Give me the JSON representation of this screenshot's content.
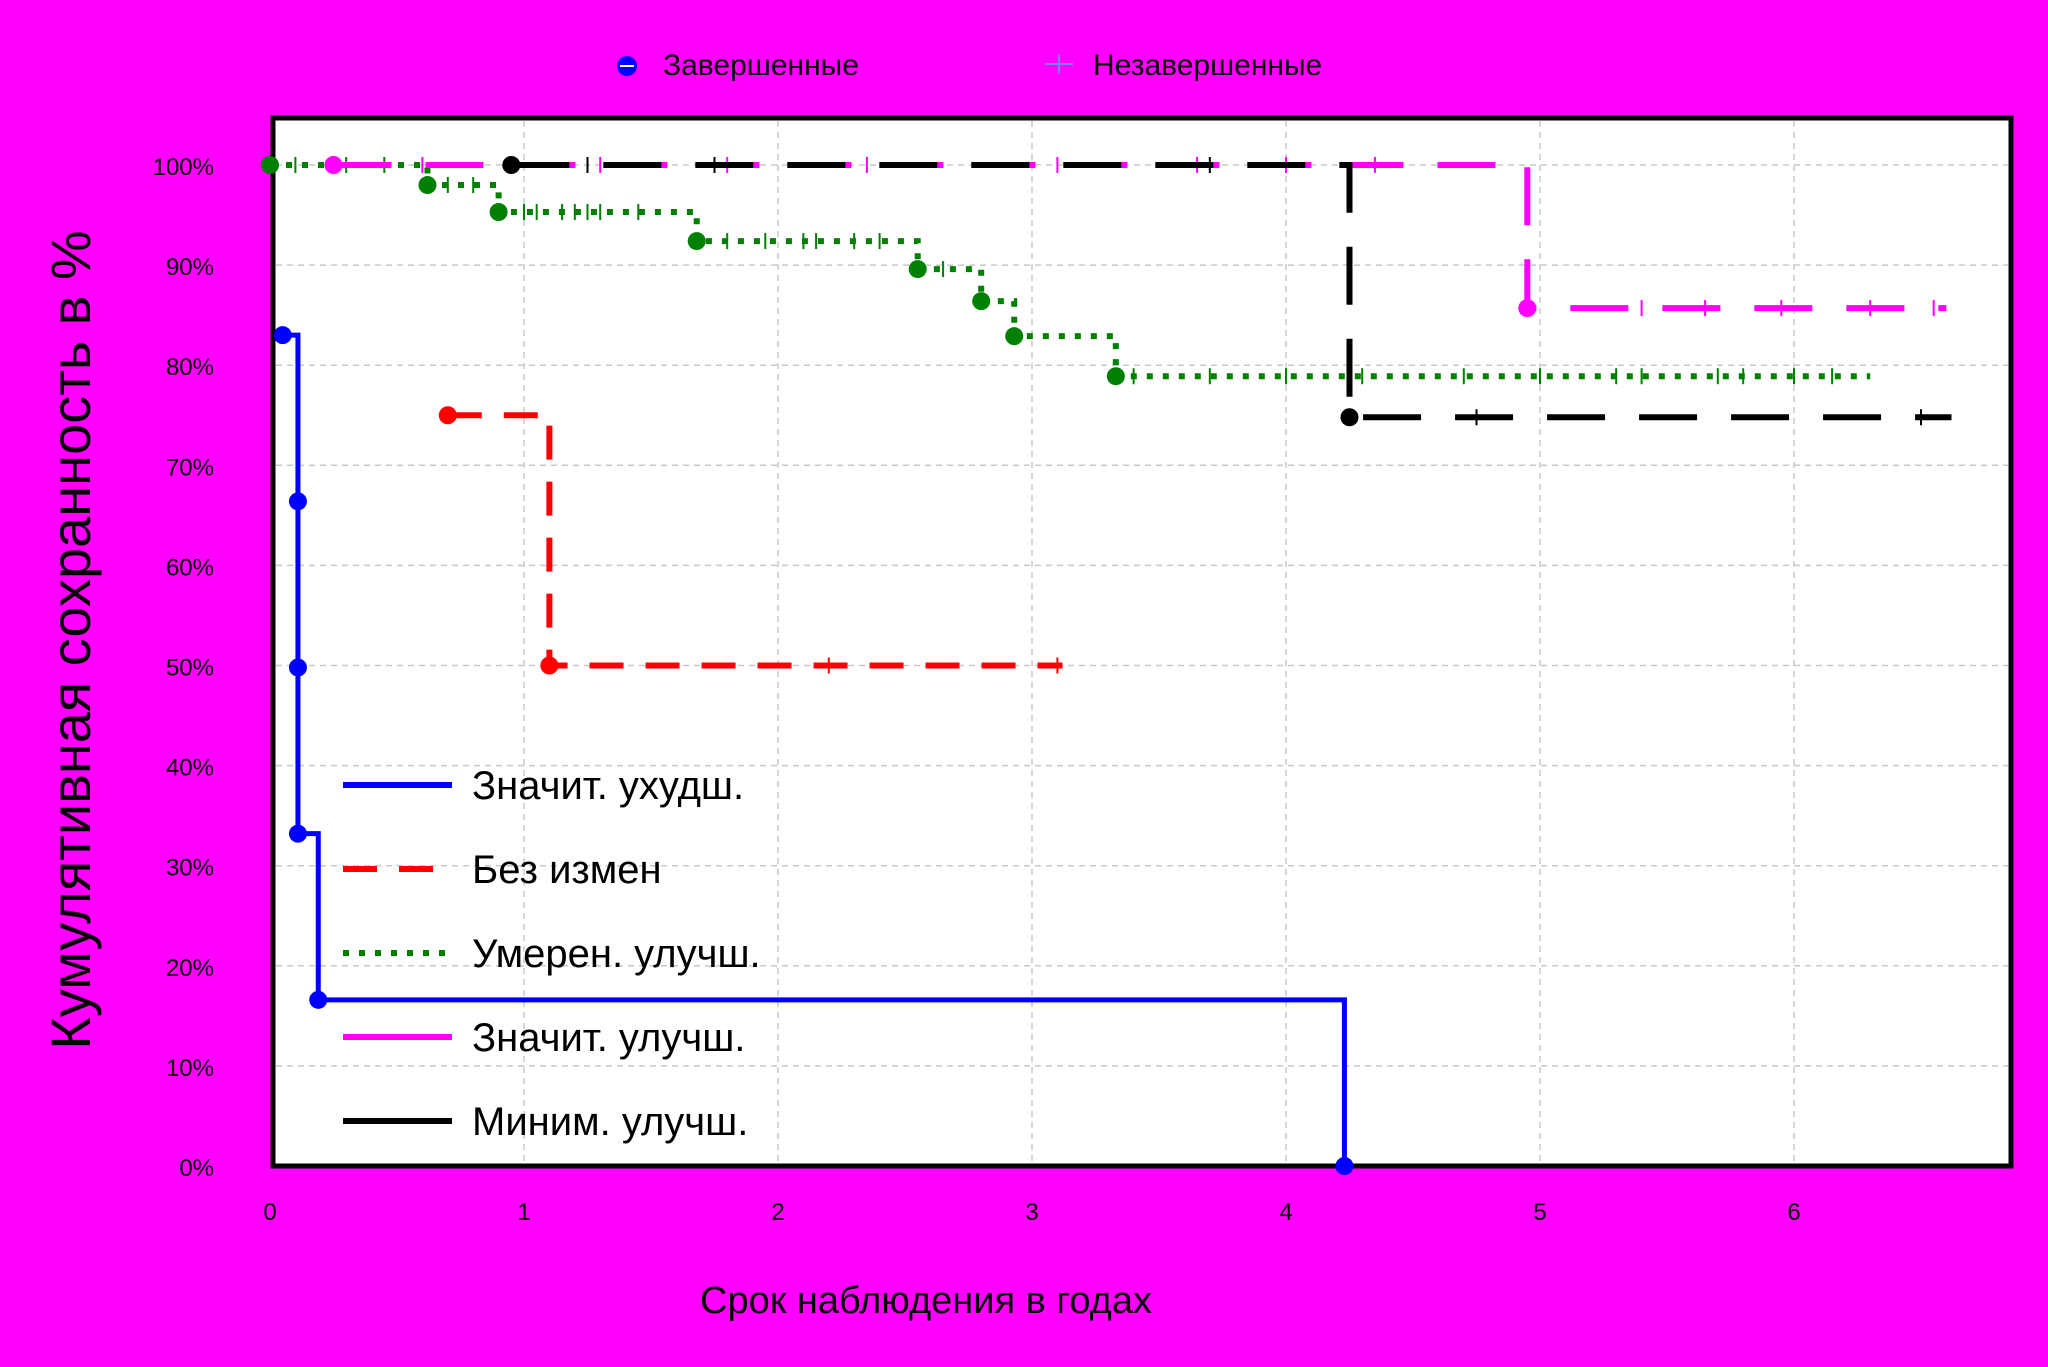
{
  "chart_data": {
    "type": "line",
    "step": true,
    "ylabel": "Кумулятивная сохранность в %",
    "xlabel": "Срок наблюдения в годах",
    "xlim": [
      0,
      6.85
    ],
    "ylim": [
      0,
      100
    ],
    "x_ticks": [
      "0",
      "1",
      "2",
      "3",
      "4",
      "5",
      "6"
    ],
    "y_ticks": [
      "0%",
      "10%",
      "20%",
      "30%",
      "40%",
      "50%",
      "60%",
      "70%",
      "80%",
      "90%",
      "100%"
    ],
    "grid": true,
    "marker_legend": [
      {
        "label": "Завершенные",
        "marker": "circle"
      },
      {
        "label": "Незавершенные",
        "marker": "plus"
      }
    ],
    "legend_position": "lower-left",
    "series": [
      {
        "name": "Значит. ухудш.",
        "color": "#0000ff",
        "style": "solid",
        "steps": [
          [
            0.05,
            83
          ],
          [
            0.11,
            66.4
          ],
          [
            0.11,
            49.8
          ],
          [
            0.11,
            33.2
          ],
          [
            0.19,
            16.6
          ],
          [
            4.23,
            0
          ]
        ],
        "censored": []
      },
      {
        "name": "Без измен",
        "color": "#ff0000",
        "style": "dashed",
        "steps": [
          [
            0.7,
            75
          ],
          [
            1.1,
            50
          ]
        ],
        "end_x": 3.12,
        "censored": [
          2.2,
          3.1
        ]
      },
      {
        "name": "Умерен. улучш.",
        "color": "#008000",
        "style": "dotted",
        "steps": [
          [
            0.0,
            100
          ],
          [
            0.62,
            98
          ],
          [
            0.9,
            95.3
          ],
          [
            1.68,
            92.4
          ],
          [
            2.55,
            89.6
          ],
          [
            2.8,
            86.4
          ],
          [
            2.93,
            82.9
          ],
          [
            3.33,
            78.9
          ]
        ],
        "end_x": 6.3,
        "censored": [
          0.1,
          0.3,
          0.45,
          0.7,
          0.8,
          1.0,
          1.05,
          1.15,
          1.2,
          1.25,
          1.3,
          1.45,
          1.8,
          1.95,
          2.1,
          2.15,
          2.3,
          2.4,
          2.65,
          3.4,
          3.7,
          4.0,
          4.3,
          4.7,
          5.0,
          5.3,
          5.4,
          5.7,
          5.8,
          6.0,
          6.15
        ]
      },
      {
        "name": "Значит. улучш.",
        "color": "#ff00ff",
        "style": "long-dash",
        "steps": [
          [
            0.25,
            100
          ],
          [
            4.95,
            85.7
          ]
        ],
        "end_x": 6.6,
        "censored": [
          0.6,
          1.3,
          1.8,
          2.35,
          3.1,
          3.65,
          4.0,
          4.35,
          5.4,
          5.65,
          5.95,
          6.3,
          6.55
        ]
      },
      {
        "name": "Миним. улучш.",
        "color": "#000000",
        "style": "long-dash",
        "steps": [
          [
            0.95,
            100
          ],
          [
            4.25,
            74.8
          ]
        ],
        "end_x": 6.62,
        "censored": [
          1.25,
          1.75,
          3.7,
          4.75,
          6.5
        ]
      }
    ]
  }
}
